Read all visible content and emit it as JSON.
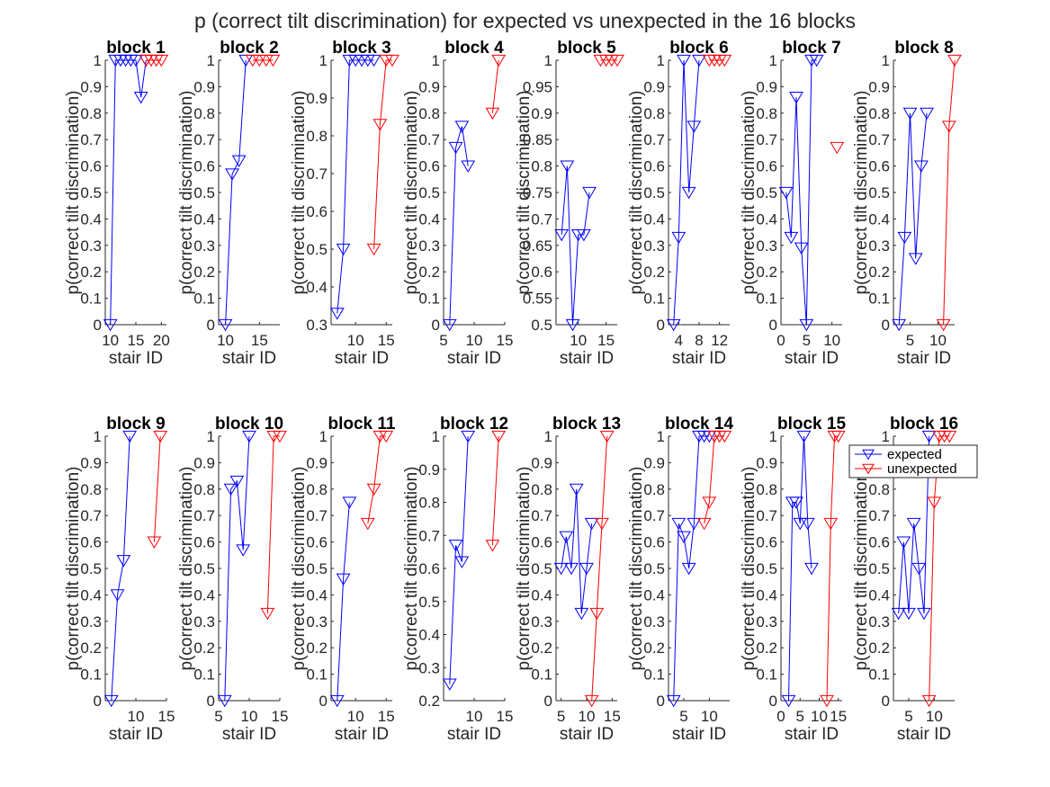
{
  "figure_title": "p (correct tilt discrimination) for expected vs unexpected in the 16 blocks",
  "legend": {
    "entries": [
      "expected",
      "unexpected"
    ]
  },
  "colors": {
    "expected": "#0000ff",
    "unexpected": "#ff0000",
    "axes": "#262626"
  },
  "chart_data": [
    {
      "type": "line",
      "title": "block 1",
      "xlabel": "stair ID",
      "ylabel": "p(correct tilt discrimination)",
      "xlim": [
        9,
        21
      ],
      "ylim": [
        0,
        1
      ],
      "xticks": [
        10,
        15,
        20
      ],
      "yticks": [
        0,
        0.1,
        0.2,
        0.3,
        0.4,
        0.5,
        0.6,
        0.7,
        0.8,
        0.9,
        1
      ],
      "series": [
        {
          "name": "expected",
          "x": [
            10,
            11,
            12,
            13,
            14,
            15,
            16,
            17
          ],
          "y": [
            0,
            1,
            1,
            1,
            1,
            1,
            0.86,
            1
          ]
        },
        {
          "name": "unexpected",
          "x": [
            17,
            18,
            19,
            20
          ],
          "y": [
            1,
            1,
            1,
            1
          ]
        }
      ]
    },
    {
      "type": "line",
      "title": "block 2",
      "xlabel": "stair ID",
      "ylabel": "p(correct tilt discrimination)",
      "xlim": [
        9,
        18
      ],
      "ylim": [
        0,
        1
      ],
      "xticks": [
        10,
        15
      ],
      "yticks": [
        0,
        0.1,
        0.2,
        0.3,
        0.4,
        0.5,
        0.6,
        0.7,
        0.8,
        0.9,
        1
      ],
      "series": [
        {
          "name": "expected",
          "x": [
            10,
            11,
            12,
            13
          ],
          "y": [
            0,
            0.57,
            0.62,
            1
          ]
        },
        {
          "name": "unexpected",
          "x": [
            14,
            15,
            16,
            17
          ],
          "y": [
            1,
            1,
            1,
            1
          ]
        }
      ]
    },
    {
      "type": "line",
      "title": "block 3",
      "xlabel": "stair ID",
      "ylabel": "p(correct tilt discrimination)",
      "xlim": [
        6,
        16
      ],
      "ylim": [
        0.3,
        1
      ],
      "xticks": [
        10,
        15
      ],
      "yticks": [
        0.3,
        0.4,
        0.5,
        0.6,
        0.7,
        0.8,
        0.9,
        1
      ],
      "series": [
        {
          "name": "expected",
          "x": [
            7,
            8,
            9,
            10,
            11,
            12,
            13
          ],
          "y": [
            0.33,
            0.5,
            1,
            1,
            1,
            1,
            1
          ]
        },
        {
          "name": "unexpected",
          "x": [
            13,
            14,
            15,
            16
          ],
          "y": [
            0.5,
            0.83,
            1,
            1
          ]
        }
      ]
    },
    {
      "type": "line",
      "title": "block 4",
      "xlabel": "stair ID",
      "ylabel": "p(correct tilt discrimination)",
      "xlim": [
        5,
        15
      ],
      "ylim": [
        0,
        1
      ],
      "xticks": [
        5,
        10,
        15
      ],
      "yticks": [
        0,
        0.1,
        0.2,
        0.3,
        0.4,
        0.5,
        0.6,
        0.7,
        0.8,
        0.9,
        1
      ],
      "series": [
        {
          "name": "expected",
          "x": [
            6,
            7,
            8,
            9
          ],
          "y": [
            0,
            0.67,
            0.75,
            0.6
          ]
        },
        {
          "name": "unexpected",
          "x": [
            13,
            14
          ],
          "y": [
            0.8,
            1
          ]
        }
      ]
    },
    {
      "type": "line",
      "title": "block 5",
      "xlabel": "stair ID",
      "ylabel": "p(correct tilt discrimination)",
      "xlim": [
        6,
        17
      ],
      "ylim": [
        0.5,
        1
      ],
      "xticks": [
        10,
        15
      ],
      "yticks": [
        0.5,
        0.55,
        0.6,
        0.65,
        0.7,
        0.75,
        0.8,
        0.85,
        0.9,
        0.95,
        1
      ],
      "series": [
        {
          "name": "expected",
          "x": [
            7,
            8,
            9,
            10,
            11,
            12
          ],
          "y": [
            0.67,
            0.8,
            0.5,
            0.67,
            0.67,
            0.75
          ]
        },
        {
          "name": "unexpected",
          "x": [
            14,
            15,
            16,
            17
          ],
          "y": [
            1,
            1,
            1,
            1
          ]
        }
      ]
    },
    {
      "type": "line",
      "title": "block 6",
      "xlabel": "stair ID",
      "ylabel": "p(correct tilt discrimination)",
      "xlim": [
        2,
        14
      ],
      "ylim": [
        0,
        1
      ],
      "xticks": [
        4,
        8,
        12
      ],
      "yticks": [
        0,
        0.1,
        0.2,
        0.3,
        0.4,
        0.5,
        0.6,
        0.7,
        0.8,
        0.9,
        1
      ],
      "series": [
        {
          "name": "expected",
          "x": [
            3,
            4,
            5,
            6,
            7,
            8
          ],
          "y": [
            0,
            0.33,
            1,
            0.5,
            0.75,
            1
          ]
        },
        {
          "name": "unexpected",
          "x": [
            10,
            11,
            12,
            13
          ],
          "y": [
            1,
            1,
            1,
            1
          ]
        }
      ]
    },
    {
      "type": "line",
      "title": "block 7",
      "xlabel": "stair ID",
      "ylabel": "p(correct tilt discrimination)",
      "xlim": [
        0,
        12
      ],
      "ylim": [
        0,
        1
      ],
      "xticks": [
        0,
        5,
        10
      ],
      "yticks": [
        0,
        0.1,
        0.2,
        0.3,
        0.4,
        0.5,
        0.6,
        0.7,
        0.8,
        0.9,
        1
      ],
      "series": [
        {
          "name": "expected",
          "x": [
            1,
            2,
            3,
            4,
            5,
            6,
            7
          ],
          "y": [
            0.5,
            0.33,
            0.86,
            0.29,
            0,
            1,
            1
          ]
        },
        {
          "name": "unexpected",
          "x": [
            11
          ],
          "y": [
            0.67
          ]
        }
      ]
    },
    {
      "type": "line",
      "title": "block 8",
      "xlabel": "stair ID",
      "ylabel": "p(correct tilt discrimination)",
      "xlim": [
        2,
        13
      ],
      "ylim": [
        0,
        1
      ],
      "xticks": [
        5,
        10
      ],
      "yticks": [
        0,
        0.1,
        0.2,
        0.3,
        0.4,
        0.5,
        0.6,
        0.7,
        0.8,
        0.9,
        1
      ],
      "series": [
        {
          "name": "expected",
          "x": [
            3,
            4,
            5,
            6,
            7,
            8
          ],
          "y": [
            0,
            0.33,
            0.8,
            0.25,
            0.6,
            0.8
          ]
        },
        {
          "name": "unexpected",
          "x": [
            11,
            12,
            13
          ],
          "y": [
            0,
            0.75,
            1
          ]
        }
      ]
    },
    {
      "type": "line",
      "title": "block 9",
      "xlabel": "stair ID",
      "ylabel": "p(correct tilt discrimination)",
      "xlim": [
        5,
        15
      ],
      "ylim": [
        0,
        1
      ],
      "xticks": [
        10,
        15
      ],
      "yticks": [
        0,
        0.1,
        0.2,
        0.3,
        0.4,
        0.5,
        0.6,
        0.7,
        0.8,
        0.9,
        1
      ],
      "series": [
        {
          "name": "expected",
          "x": [
            6,
            7,
            8,
            9
          ],
          "y": [
            0,
            0.4,
            0.53,
            1
          ]
        },
        {
          "name": "unexpected",
          "x": [
            13,
            14
          ],
          "y": [
            0.6,
            1
          ]
        }
      ]
    },
    {
      "type": "line",
      "title": "block 10",
      "xlabel": "stair ID",
      "ylabel": "p(correct tilt discrimination)",
      "xlim": [
        5,
        15
      ],
      "ylim": [
        0,
        1
      ],
      "xticks": [
        5,
        10,
        15
      ],
      "yticks": [
        0,
        0.1,
        0.2,
        0.3,
        0.4,
        0.5,
        0.6,
        0.7,
        0.8,
        0.9,
        1
      ],
      "series": [
        {
          "name": "expected",
          "x": [
            6,
            7,
            8,
            9,
            10
          ],
          "y": [
            0,
            0.8,
            0.83,
            0.57,
            1
          ]
        },
        {
          "name": "unexpected",
          "x": [
            13,
            14,
            15
          ],
          "y": [
            0.33,
            1,
            1
          ]
        }
      ]
    },
    {
      "type": "line",
      "title": "block 11",
      "xlabel": "stair ID",
      "ylabel": "p(correct tilt discrimination)",
      "xlim": [
        6,
        16
      ],
      "ylim": [
        0,
        1
      ],
      "xticks": [
        10,
        15
      ],
      "yticks": [
        0,
        0.1,
        0.2,
        0.3,
        0.4,
        0.5,
        0.6,
        0.7,
        0.8,
        0.9,
        1
      ],
      "series": [
        {
          "name": "expected",
          "x": [
            7,
            8,
            9
          ],
          "y": [
            0,
            0.46,
            0.75
          ]
        },
        {
          "name": "unexpected",
          "x": [
            12,
            13,
            14,
            15
          ],
          "y": [
            0.67,
            0.8,
            1,
            1
          ]
        }
      ]
    },
    {
      "type": "line",
      "title": "block 12",
      "xlabel": "stair ID",
      "ylabel": "p(correct tilt discrimination)",
      "xlim": [
        5,
        15
      ],
      "ylim": [
        0.2,
        1
      ],
      "xticks": [
        10,
        15
      ],
      "yticks": [
        0.2,
        0.3,
        0.4,
        0.5,
        0.6,
        0.7,
        0.8,
        0.9,
        1
      ],
      "series": [
        {
          "name": "expected",
          "x": [
            6,
            7,
            8,
            9
          ],
          "y": [
            0.25,
            0.67,
            0.62,
            1
          ]
        },
        {
          "name": "unexpected",
          "x": [
            13,
            14
          ],
          "y": [
            0.67,
            1
          ]
        }
      ]
    },
    {
      "type": "line",
      "title": "block 13",
      "xlabel": "stair ID",
      "ylabel": "p(correct tilt discrimination)",
      "xlim": [
        4,
        16
      ],
      "ylim": [
        0,
        1
      ],
      "xticks": [
        5,
        10,
        15
      ],
      "yticks": [
        0,
        0.1,
        0.2,
        0.3,
        0.4,
        0.5,
        0.6,
        0.7,
        0.8,
        0.9,
        1
      ],
      "series": [
        {
          "name": "expected",
          "x": [
            5,
            6,
            7,
            8,
            9,
            10,
            11
          ],
          "y": [
            0.5,
            0.62,
            0.5,
            0.8,
            0.33,
            0.5,
            0.67
          ]
        },
        {
          "name": "unexpected",
          "x": [
            11,
            12,
            13,
            14
          ],
          "y": [
            0,
            0.33,
            0.67,
            1
          ]
        }
      ]
    },
    {
      "type": "line",
      "title": "block 14",
      "xlabel": "stair ID",
      "ylabel": "p(correct tilt discrimination)",
      "xlim": [
        2,
        14
      ],
      "ylim": [
        0,
        1
      ],
      "xticks": [
        5,
        10
      ],
      "yticks": [
        0,
        0.1,
        0.2,
        0.3,
        0.4,
        0.5,
        0.6,
        0.7,
        0.8,
        0.9,
        1
      ],
      "series": [
        {
          "name": "expected",
          "x": [
            3,
            4,
            5,
            6,
            7,
            8,
            9,
            10
          ],
          "y": [
            0,
            0.67,
            0.62,
            0.5,
            0.67,
            1,
            1,
            1
          ]
        },
        {
          "name": "unexpected",
          "x": [
            9,
            10,
            11,
            12,
            13
          ],
          "y": [
            0.67,
            0.75,
            1,
            1,
            1
          ]
        }
      ]
    },
    {
      "type": "line",
      "title": "block 15",
      "xlabel": "stair ID",
      "ylabel": "p(correct tilt discrimination)",
      "xlim": [
        0,
        16
      ],
      "ylim": [
        0,
        1
      ],
      "xticks": [
        0,
        5,
        10,
        15
      ],
      "yticks": [
        0,
        0.1,
        0.2,
        0.3,
        0.4,
        0.5,
        0.6,
        0.7,
        0.8,
        0.9,
        1
      ],
      "series": [
        {
          "name": "expected",
          "x": [
            2,
            3,
            4,
            5,
            6,
            7,
            8
          ],
          "y": [
            0,
            0.75,
            0.75,
            0.67,
            1,
            0.67,
            0.5
          ]
        },
        {
          "name": "unexpected",
          "x": [
            12,
            13,
            14,
            15
          ],
          "y": [
            0,
            0.67,
            1,
            1
          ]
        }
      ]
    },
    {
      "type": "line",
      "title": "block 16",
      "xlabel": "stair ID",
      "ylabel": "p(correct tilt discrimination)",
      "xlim": [
        2,
        14
      ],
      "ylim": [
        0,
        1
      ],
      "xticks": [
        5,
        10
      ],
      "yticks": [
        0,
        0.1,
        0.2,
        0.3,
        0.4,
        0.5,
        0.6,
        0.7,
        0.8,
        0.9,
        1
      ],
      "series": [
        {
          "name": "expected",
          "x": [
            3,
            4,
            5,
            6,
            7,
            8,
            9
          ],
          "y": [
            0.33,
            0.6,
            0.33,
            0.67,
            0.5,
            0.33,
            1
          ]
        },
        {
          "name": "unexpected",
          "x": [
            9,
            10,
            11,
            12,
            13
          ],
          "y": [
            0,
            0.75,
            1,
            1,
            1
          ]
        }
      ]
    }
  ]
}
